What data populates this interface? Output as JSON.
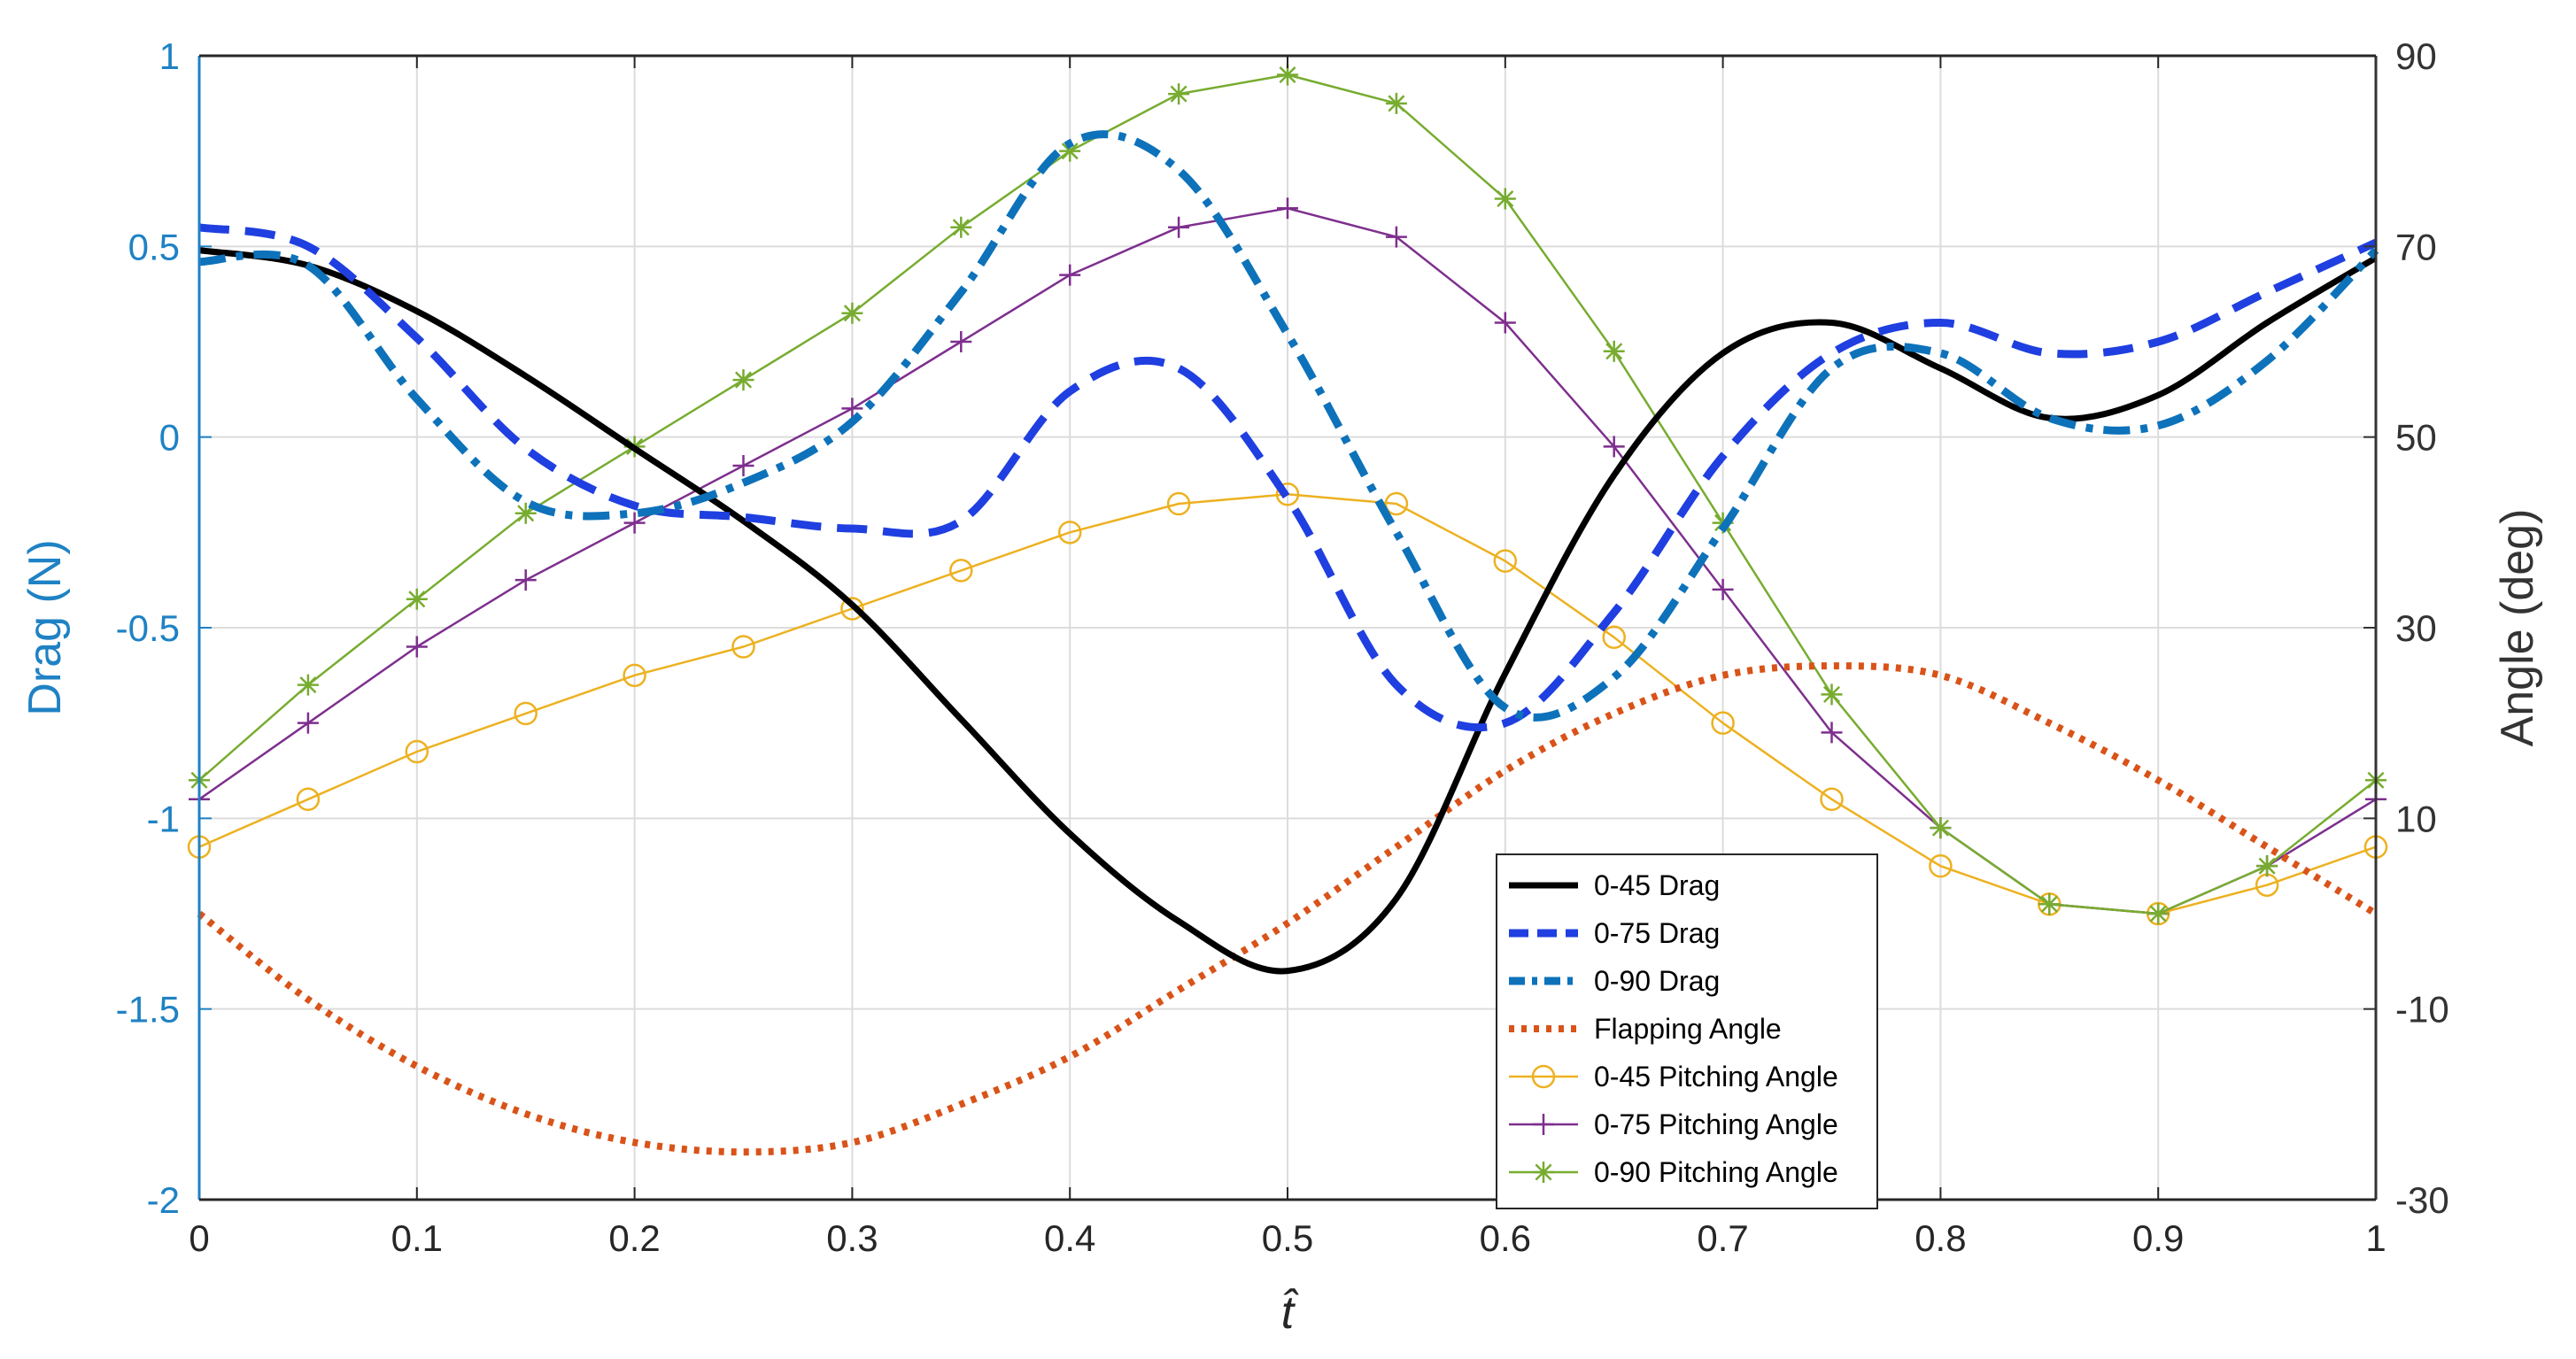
{
  "chart_data": {
    "type": "line",
    "x": [
      0,
      0.05,
      0.1,
      0.15,
      0.2,
      0.25,
      0.3,
      0.35,
      0.4,
      0.45,
      0.5,
      0.55,
      0.6,
      0.65,
      0.7,
      0.75,
      0.8,
      0.85,
      0.9,
      0.95,
      1
    ],
    "xlabel": "t̂",
    "xlim": [
      0,
      1
    ],
    "xticks": [
      "0",
      "0.1",
      "0.2",
      "0.3",
      "0.4",
      "0.5",
      "0.6",
      "0.7",
      "0.8",
      "0.9",
      "1"
    ],
    "left_axis": {
      "label": "Drag (N)",
      "ylim": [
        -2,
        1
      ],
      "ticks": [
        "-2",
        "-1.5",
        "-1",
        "-0.5",
        "0",
        "0.5",
        "1"
      ],
      "color": "#1f82c4"
    },
    "right_axis": {
      "label": "Angle (deg)",
      "ylim": [
        -30,
        90
      ],
      "ticks": [
        "-30",
        "-10",
        "10",
        "30",
        "50",
        "70",
        "90"
      ],
      "color": "#333333"
    },
    "grid": true,
    "legend_position": "bottom-center",
    "series": [
      {
        "name": "0-45 Drag",
        "axis": "left",
        "color": "#000000",
        "style": "solid",
        "marker": "none",
        "values": [
          0.49,
          0.45,
          0.33,
          0.16,
          -0.03,
          -0.22,
          -0.44,
          -0.74,
          -1.04,
          -1.27,
          -1.4,
          -1.21,
          -0.62,
          -0.1,
          0.22,
          0.3,
          0.18,
          0.05,
          0.11,
          0.3,
          0.47
        ]
      },
      {
        "name": "0-75 Drag",
        "axis": "left",
        "color": "#1f3fe0",
        "style": "dashed",
        "marker": "none",
        "values": [
          0.55,
          0.5,
          0.26,
          -0.03,
          -0.18,
          -0.21,
          -0.24,
          -0.22,
          0.12,
          0.18,
          -0.16,
          -0.65,
          -0.75,
          -0.46,
          -0.05,
          0.22,
          0.3,
          0.22,
          0.25,
          0.38,
          0.51
        ]
      },
      {
        "name": "0-90 Drag",
        "axis": "left",
        "color": "#0d72ba",
        "style": "dashdot",
        "marker": "none",
        "values": [
          0.46,
          0.45,
          0.1,
          -0.17,
          -0.2,
          -0.12,
          0.04,
          0.38,
          0.77,
          0.7,
          0.27,
          -0.25,
          -0.71,
          -0.63,
          -0.24,
          0.18,
          0.22,
          0.05,
          0.03,
          0.2,
          0.49
        ]
      },
      {
        "name": "Flapping Angle",
        "axis": "right",
        "color": "#d95319",
        "style": "dotted",
        "marker": "none",
        "values": [
          0,
          -9,
          -16,
          -21,
          -24,
          -25,
          -24,
          -20,
          -15,
          -8,
          -1,
          7,
          15,
          21,
          25,
          26,
          25,
          20,
          14,
          7,
          0
        ]
      },
      {
        "name": "0-45 Pitching Angle",
        "axis": "right",
        "color": "#edb120",
        "style": "solid",
        "marker": "circle",
        "values": [
          7,
          12,
          17,
          21,
          25,
          28,
          32,
          36,
          40,
          43,
          44,
          43,
          37,
          29,
          20,
          12,
          5,
          1,
          0,
          3,
          7
        ]
      },
      {
        "name": "0-75 Pitching Angle",
        "axis": "right",
        "color": "#7e2f8e",
        "style": "solid",
        "marker": "plus",
        "values": [
          12,
          20,
          28,
          35,
          41,
          47,
          53,
          60,
          67,
          72,
          74,
          71,
          62,
          49,
          34,
          19,
          9,
          1,
          0,
          5,
          12
        ]
      },
      {
        "name": "0-90 Pitching Angle",
        "axis": "right",
        "color": "#77ac30",
        "style": "solid",
        "marker": "asterisk",
        "values": [
          14,
          24,
          33,
          42,
          49,
          56,
          63,
          72,
          80,
          86,
          88,
          85,
          75,
          59,
          41,
          23,
          9,
          1,
          0,
          5,
          14
        ]
      }
    ]
  }
}
